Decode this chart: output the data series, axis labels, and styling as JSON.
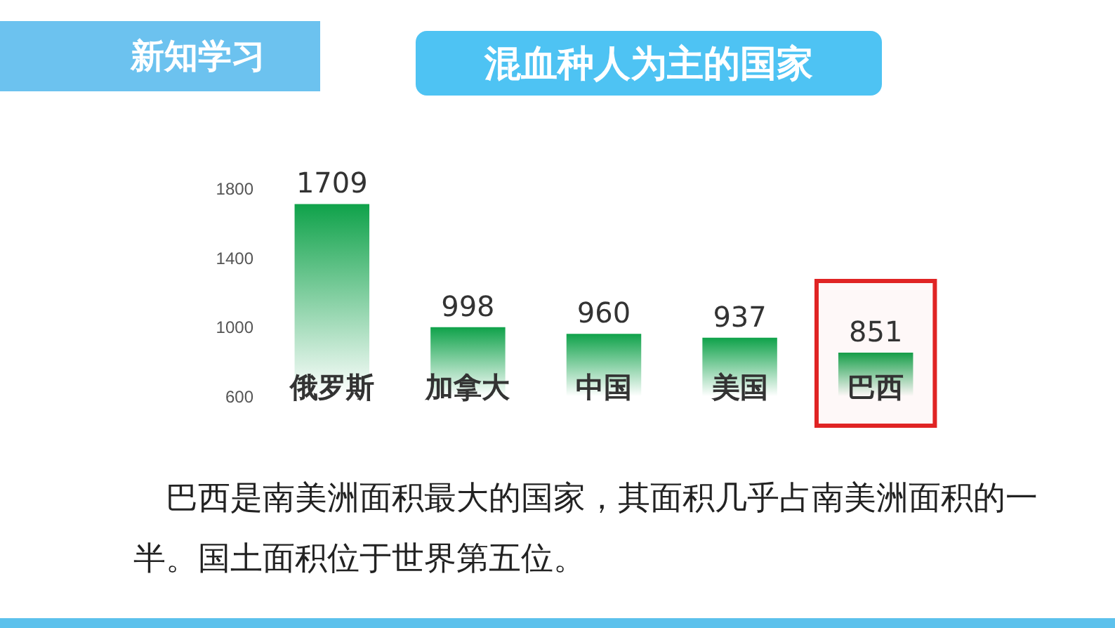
{
  "chart_data": {
    "type": "bar",
    "title": "混血种人为主的国家",
    "categories": [
      "俄罗斯",
      "加拿大",
      "中国",
      "美国",
      "巴西"
    ],
    "values": [
      1709,
      998,
      960,
      937,
      851
    ],
    "color": "#0fa24a",
    "ylim": [
      600,
      1800
    ],
    "yticks": [
      600,
      1000,
      1400,
      1800
    ],
    "data_labels": true,
    "bands": [
      {
        "axis": "x",
        "from": "巴西",
        "to": "巴西",
        "color": "#e02424"
      }
    ],
    "annotations": [
      "新知学习",
      "巴西是南美洲面积最大的国家，其面积几乎占南美洲面积的一半。国土面积位于世界第五位。"
    ]
  }
}
